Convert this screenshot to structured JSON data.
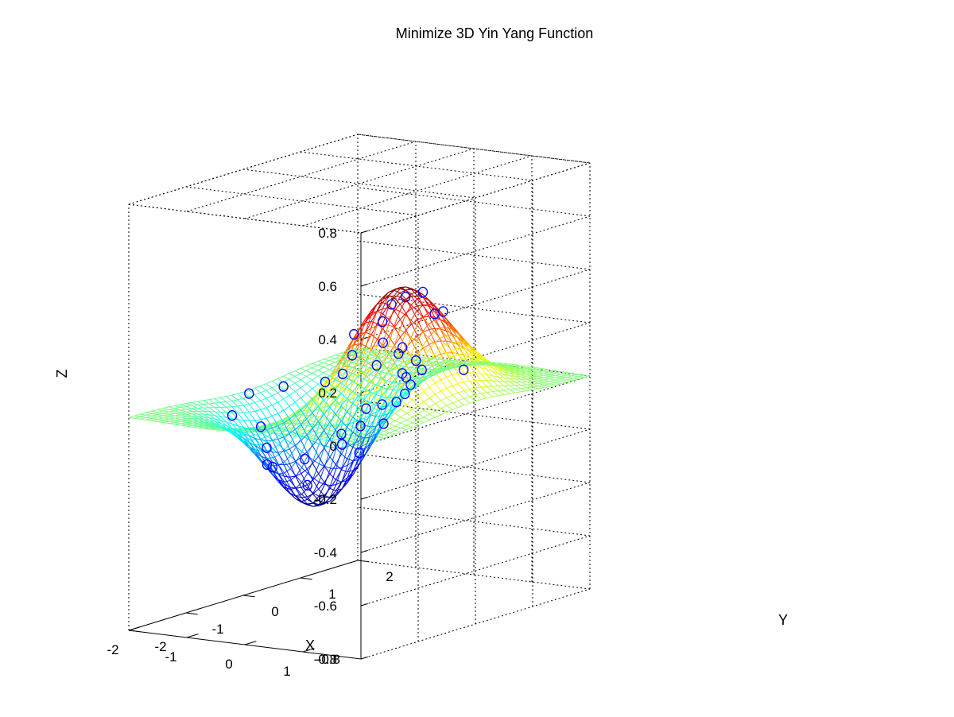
{
  "chart_data": {
    "type": "surface",
    "title": "Minimize 3D Yin Yang Function",
    "xlabel": "X",
    "ylabel": "Y",
    "zlabel": "Z",
    "function": "z = x*exp(-x^2 - y^2)",
    "xlim": [
      -2,
      2
    ],
    "ylim": [
      -2,
      2
    ],
    "zlim": [
      -0.8,
      0.8
    ],
    "x_ticks": [
      "-2",
      "-1",
      "0",
      "1"
    ],
    "y_ticks": [
      "-2",
      "-1",
      "0",
      "1",
      "2"
    ],
    "z_ticks": [
      "-0.8",
      "-0.6",
      "-0.4",
      "-0.2",
      "0",
      "0.2",
      "0.4",
      "0.6",
      "0.8"
    ],
    "z_tick_overlap_label": "-0.8",
    "grid": true,
    "colormap": "jet",
    "mesh_resolution": 40,
    "sample_point_color": "#0000ff",
    "sample_points": [
      [
        1.0,
        -0.6
      ],
      [
        0.85,
        -0.3
      ],
      [
        1.1,
        0.2
      ],
      [
        0.9,
        0.55
      ],
      [
        0.3,
        0.1
      ],
      [
        0.5,
        0.3
      ],
      [
        1.4,
        -0.6
      ],
      [
        1.6,
        0.2
      ],
      [
        0.1,
        0.2
      ],
      [
        0.2,
        0.55
      ],
      [
        0.05,
        0.7
      ],
      [
        -0.1,
        0.5
      ],
      [
        -0.2,
        0.85
      ],
      [
        -0.3,
        1.1
      ],
      [
        -0.4,
        1.3
      ],
      [
        -0.5,
        1.6
      ],
      [
        -0.8,
        1.8
      ],
      [
        -1.2,
        1.9
      ],
      [
        0.75,
        0.35
      ],
      [
        0.4,
        -0.5
      ],
      [
        -0.5,
        -0.4
      ],
      [
        -0.9,
        -0.7
      ],
      [
        -1.3,
        -0.3
      ],
      [
        -0.35,
        -0.6
      ],
      [
        -1.0,
        0.7
      ],
      [
        -0.3,
        0.3
      ],
      [
        1.5,
        -1.5
      ],
      [
        1.3,
        -1.2
      ],
      [
        0.7,
        -1.0
      ],
      [
        1.7,
        -1.3
      ],
      [
        -1.7,
        1.6
      ],
      [
        -1.8,
        0.5
      ],
      [
        -1.9,
        0.0
      ],
      [
        -1.6,
        -0.6
      ],
      [
        -1.5,
        -0.2
      ],
      [
        -1.1,
        -0.4
      ],
      [
        -0.2,
        -0.1
      ],
      [
        0.2,
        -0.8
      ]
    ]
  }
}
